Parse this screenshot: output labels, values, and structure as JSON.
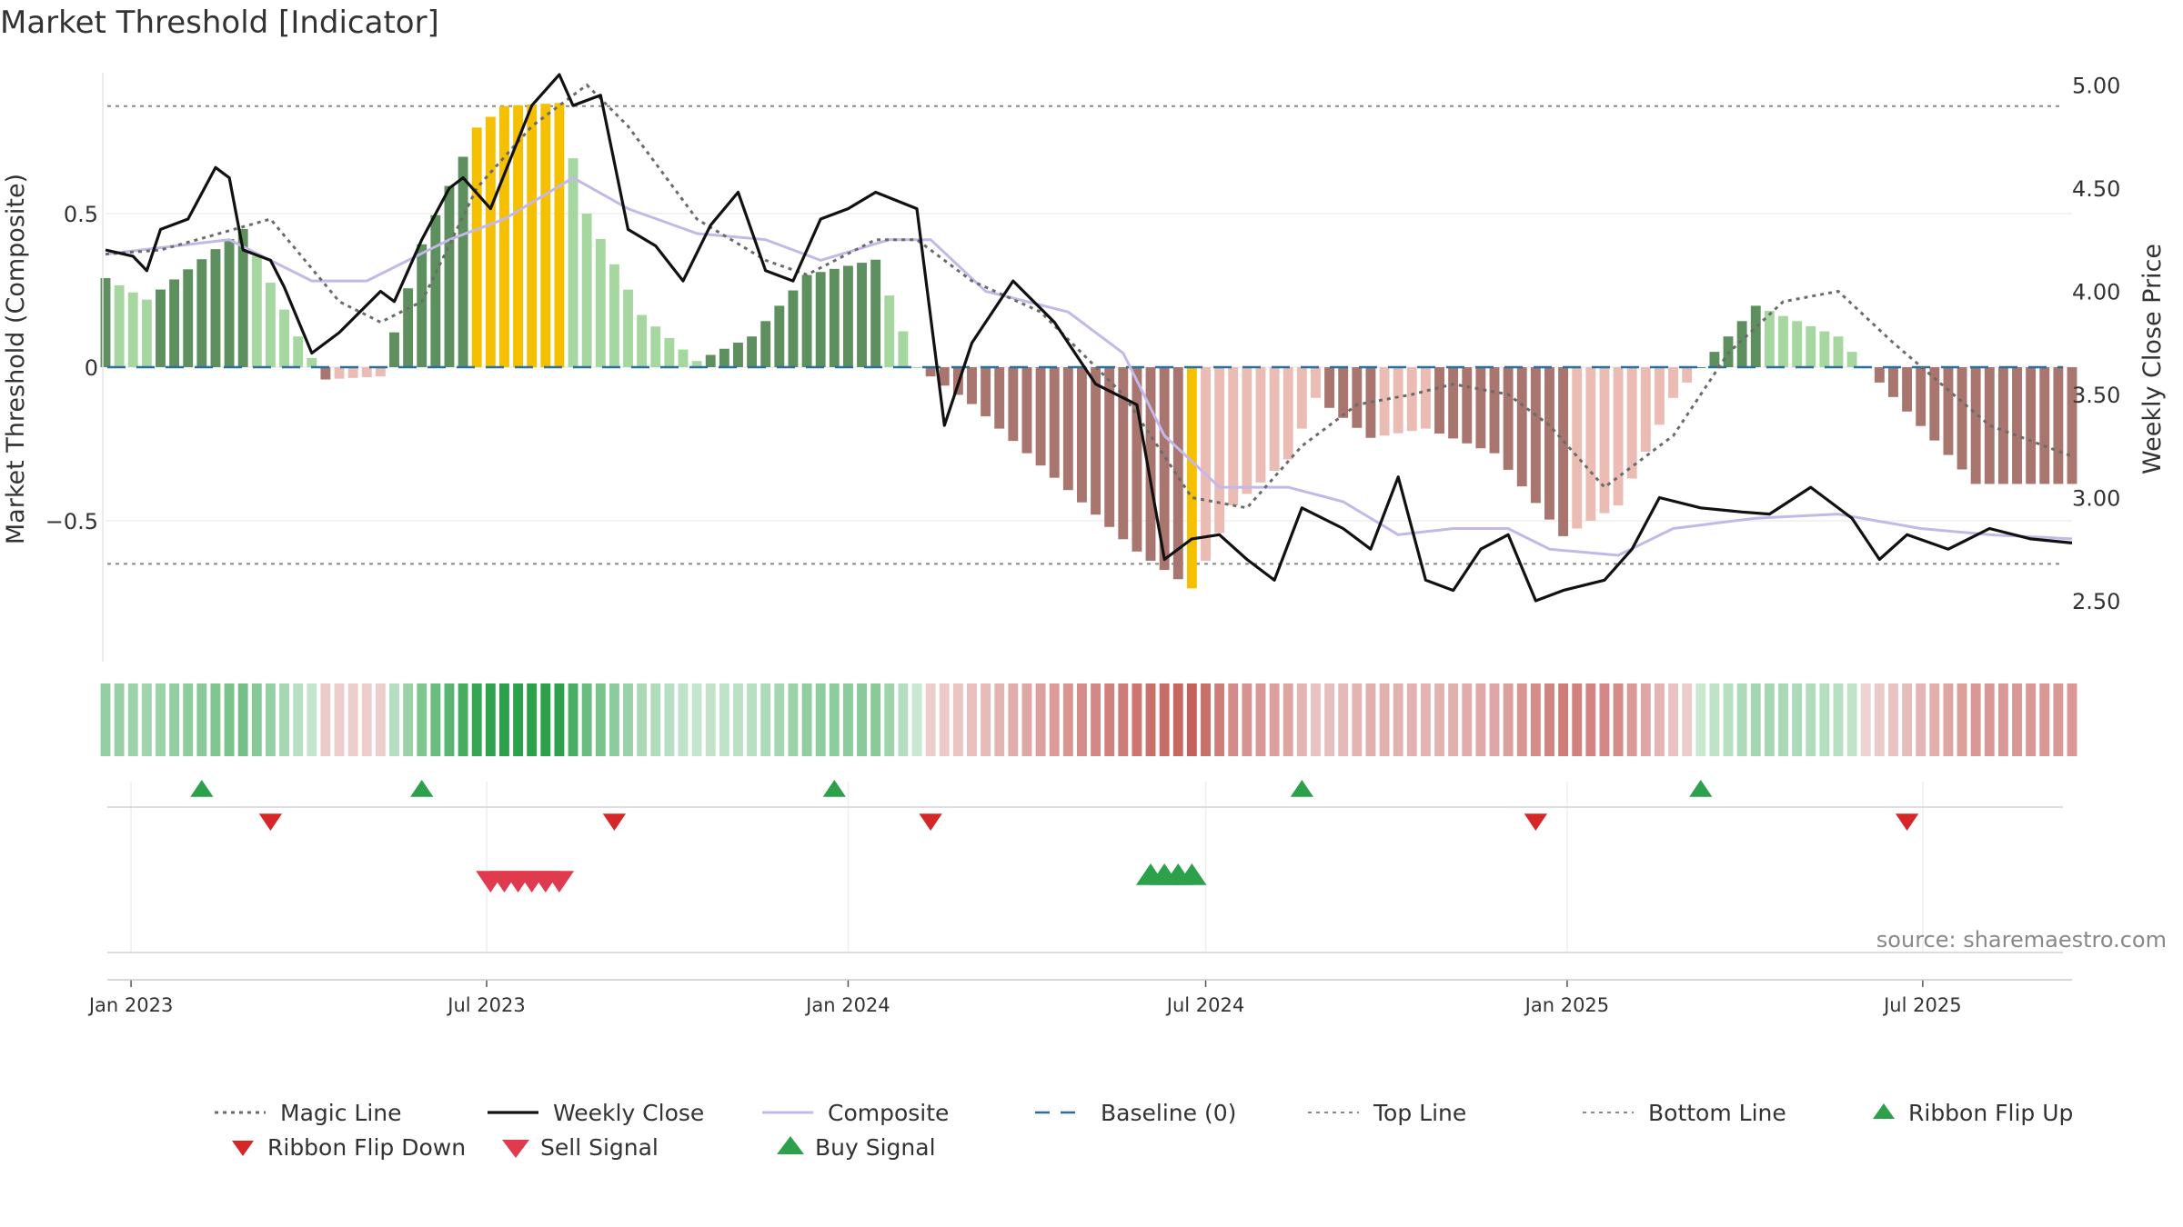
{
  "chart_data": {
    "type": "bar",
    "title": "Market Threshold [Indicator]",
    "ylabel": "Market Threshold (Composite)",
    "y2label": "Weekly Close Price",
    "source": "source: sharemaestro.com",
    "x_range": [
      "2022-12-19",
      "2025-09-15"
    ],
    "ylim": [
      -0.95,
      0.95
    ],
    "y2lim": [
      2.35,
      5.12
    ],
    "yticks": [
      {
        "v": 0.5,
        "label": "0.5"
      },
      {
        "v": 0,
        "label": "0"
      },
      {
        "v": -0.5,
        "label": "−0.5"
      }
    ],
    "y2ticks": [
      {
        "v": 5.0,
        "label": "5.00"
      },
      {
        "v": 4.5,
        "label": "4.50"
      },
      {
        "v": 4.0,
        "label": "4.00"
      },
      {
        "v": 3.5,
        "label": "3.50"
      },
      {
        "v": 3.0,
        "label": "3.00"
      },
      {
        "v": 2.5,
        "label": "2.50"
      }
    ],
    "xticks": [
      {
        "date": "2023-01-01",
        "label": "Jan 2023"
      },
      {
        "date": "2023-07-01",
        "label": "Jul 2023"
      },
      {
        "date": "2024-01-01",
        "label": "Jan 2024"
      },
      {
        "date": "2024-07-01",
        "label": "Jul 2024"
      },
      {
        "date": "2025-01-01",
        "label": "Jan 2025"
      },
      {
        "date": "2025-07-01",
        "label": "Jul 2025"
      }
    ],
    "top_line": 0.85,
    "bottom_line": -0.64,
    "composite_keyframes": [
      [
        "2022-12-19",
        0.29
      ],
      [
        "2023-01-09",
        0.22
      ],
      [
        "2023-02-27",
        0.45
      ],
      [
        "2023-03-27",
        0.1
      ],
      [
        "2023-04-10",
        -0.04
      ],
      [
        "2023-05-08",
        -0.03
      ],
      [
        "2023-05-29",
        0.4
      ],
      [
        "2023-06-26",
        0.78
      ],
      [
        "2023-07-10",
        0.85
      ],
      [
        "2023-08-07",
        0.86
      ],
      [
        "2023-08-21",
        0.5
      ],
      [
        "2023-09-18",
        0.17
      ],
      [
        "2023-10-16",
        0.02
      ],
      [
        "2023-11-13",
        0.1
      ],
      [
        "2023-12-11",
        0.3
      ],
      [
        "2024-01-15",
        0.35
      ],
      [
        "2024-02-05",
        0.0
      ],
      [
        "2024-03-04",
        -0.12
      ],
      [
        "2024-05-27",
        -0.6
      ],
      [
        "2024-06-24",
        -0.72
      ],
      [
        "2024-07-15",
        -0.45
      ],
      [
        "2024-08-12",
        -0.3
      ],
      [
        "2024-08-26",
        -0.1
      ],
      [
        "2024-09-23",
        -0.23
      ],
      [
        "2024-10-21",
        -0.2
      ],
      [
        "2024-11-25",
        -0.28
      ],
      [
        "2024-12-30",
        -0.55
      ],
      [
        "2025-01-27",
        -0.45
      ],
      [
        "2025-02-24",
        -0.1
      ],
      [
        "2025-03-17",
        0.05
      ],
      [
        "2025-04-07",
        0.2
      ],
      [
        "2025-05-19",
        0.1
      ],
      [
        "2025-06-09",
        -0.05
      ],
      [
        "2025-07-28",
        -0.38
      ],
      [
        "2025-09-08",
        -0.38
      ]
    ],
    "weekly_close_keyframes": [
      [
        "2022-12-19",
        4.2
      ],
      [
        "2023-01-02",
        4.17
      ],
      [
        "2023-01-09",
        4.1
      ],
      [
        "2023-01-16",
        4.3
      ],
      [
        "2023-01-30",
        4.35
      ],
      [
        "2023-02-13",
        4.6
      ],
      [
        "2023-02-20",
        4.55
      ],
      [
        "2023-02-27",
        4.2
      ],
      [
        "2023-03-13",
        4.15
      ],
      [
        "2023-03-20",
        4.02
      ],
      [
        "2023-04-03",
        3.7
      ],
      [
        "2023-04-17",
        3.8
      ],
      [
        "2023-05-08",
        4.0
      ],
      [
        "2023-05-15",
        3.95
      ],
      [
        "2023-05-29",
        4.25
      ],
      [
        "2023-06-12",
        4.5
      ],
      [
        "2023-06-19",
        4.55
      ],
      [
        "2023-07-03",
        4.4
      ],
      [
        "2023-07-24",
        4.9
      ],
      [
        "2023-08-07",
        5.05
      ],
      [
        "2023-08-14",
        4.9
      ],
      [
        "2023-08-28",
        4.95
      ],
      [
        "2023-09-11",
        4.3
      ],
      [
        "2023-09-25",
        4.22
      ],
      [
        "2023-10-09",
        4.05
      ],
      [
        "2023-10-23",
        4.32
      ],
      [
        "2023-11-06",
        4.48
      ],
      [
        "2023-11-20",
        4.1
      ],
      [
        "2023-12-04",
        4.05
      ],
      [
        "2023-12-18",
        4.35
      ],
      [
        "2024-01-01",
        4.4
      ],
      [
        "2024-01-15",
        4.48
      ],
      [
        "2024-02-05",
        4.4
      ],
      [
        "2024-02-19",
        3.35
      ],
      [
        "2024-03-04",
        3.75
      ],
      [
        "2024-03-25",
        4.05
      ],
      [
        "2024-04-15",
        3.85
      ],
      [
        "2024-05-06",
        3.55
      ],
      [
        "2024-05-27",
        3.45
      ],
      [
        "2024-06-10",
        2.7
      ],
      [
        "2024-06-24",
        2.8
      ],
      [
        "2024-07-08",
        2.82
      ],
      [
        "2024-07-22",
        2.7
      ],
      [
        "2024-08-05",
        2.6
      ],
      [
        "2024-08-19",
        2.95
      ],
      [
        "2024-09-09",
        2.85
      ],
      [
        "2024-09-23",
        2.75
      ],
      [
        "2024-10-07",
        3.1
      ],
      [
        "2024-10-21",
        2.6
      ],
      [
        "2024-11-04",
        2.55
      ],
      [
        "2024-11-18",
        2.75
      ],
      [
        "2024-12-02",
        2.82
      ],
      [
        "2024-12-16",
        2.5
      ],
      [
        "2024-12-30",
        2.55
      ],
      [
        "2025-01-20",
        2.6
      ],
      [
        "2025-02-03",
        2.75
      ],
      [
        "2025-02-17",
        3.0
      ],
      [
        "2025-03-10",
        2.95
      ],
      [
        "2025-03-31",
        2.93
      ],
      [
        "2025-04-14",
        2.92
      ],
      [
        "2025-05-05",
        3.05
      ],
      [
        "2025-05-26",
        2.9
      ],
      [
        "2025-06-09",
        2.7
      ],
      [
        "2025-06-23",
        2.82
      ],
      [
        "2025-07-14",
        2.75
      ],
      [
        "2025-08-04",
        2.85
      ],
      [
        "2025-08-25",
        2.8
      ],
      [
        "2025-09-15",
        2.78
      ]
    ],
    "weekly_composite_keyframes": [
      [
        "2022-12-19",
        4.18
      ],
      [
        "2023-02-20",
        4.25
      ],
      [
        "2023-04-03",
        4.05
      ],
      [
        "2023-05-01",
        4.05
      ],
      [
        "2023-06-12",
        4.25
      ],
      [
        "2023-07-10",
        4.35
      ],
      [
        "2023-08-14",
        4.55
      ],
      [
        "2023-09-11",
        4.4
      ],
      [
        "2023-10-16",
        4.28
      ],
      [
        "2023-11-20",
        4.25
      ],
      [
        "2023-12-18",
        4.15
      ],
      [
        "2024-01-22",
        4.25
      ],
      [
        "2024-02-12",
        4.25
      ],
      [
        "2024-03-11",
        4.0
      ],
      [
        "2024-04-22",
        3.9
      ],
      [
        "2024-05-20",
        3.7
      ],
      [
        "2024-06-10",
        3.3
      ],
      [
        "2024-07-08",
        3.05
      ],
      [
        "2024-08-12",
        3.05
      ],
      [
        "2024-09-09",
        2.98
      ],
      [
        "2024-10-07",
        2.82
      ],
      [
        "2024-11-04",
        2.85
      ],
      [
        "2024-12-02",
        2.85
      ],
      [
        "2024-12-23",
        2.75
      ],
      [
        "2025-01-27",
        2.72
      ],
      [
        "2025-02-24",
        2.85
      ],
      [
        "2025-04-07",
        2.9
      ],
      [
        "2025-05-19",
        2.92
      ],
      [
        "2025-06-30",
        2.85
      ],
      [
        "2025-08-04",
        2.82
      ],
      [
        "2025-09-15",
        2.8
      ]
    ],
    "magic_line_keyframes": [
      [
        "2022-12-19",
        4.18
      ],
      [
        "2023-01-16",
        4.2
      ],
      [
        "2023-03-13",
        4.35
      ],
      [
        "2023-04-17",
        3.95
      ],
      [
        "2023-05-08",
        3.85
      ],
      [
        "2023-05-29",
        3.95
      ],
      [
        "2023-06-26",
        4.5
      ],
      [
        "2023-07-24",
        4.8
      ],
      [
        "2023-08-21",
        5.0
      ],
      [
        "2023-09-11",
        4.8
      ],
      [
        "2023-10-16",
        4.35
      ],
      [
        "2023-11-20",
        4.15
      ],
      [
        "2023-12-11",
        4.08
      ],
      [
        "2024-01-15",
        4.25
      ],
      [
        "2024-02-05",
        4.25
      ],
      [
        "2024-03-04",
        4.05
      ],
      [
        "2024-04-08",
        3.9
      ],
      [
        "2024-05-20",
        3.5
      ],
      [
        "2024-06-24",
        3.0
      ],
      [
        "2024-07-22",
        2.95
      ],
      [
        "2024-08-19",
        3.25
      ],
      [
        "2024-09-16",
        3.45
      ],
      [
        "2024-10-14",
        3.5
      ],
      [
        "2024-11-04",
        3.55
      ],
      [
        "2024-12-02",
        3.5
      ],
      [
        "2024-12-23",
        3.35
      ],
      [
        "2025-01-20",
        3.05
      ],
      [
        "2025-02-24",
        3.3
      ],
      [
        "2025-03-24",
        3.7
      ],
      [
        "2025-04-21",
        3.95
      ],
      [
        "2025-05-19",
        4.0
      ],
      [
        "2025-06-16",
        3.75
      ],
      [
        "2025-08-04",
        3.35
      ],
      [
        "2025-09-15",
        3.2
      ]
    ],
    "ribbon_flip_up": [
      "2023-02-06",
      "2023-05-29",
      "2023-12-25",
      "2024-08-19",
      "2025-03-10"
    ],
    "ribbon_flip_down": [
      "2023-03-13",
      "2023-09-04",
      "2024-02-12",
      "2024-12-16",
      "2025-06-23"
    ],
    "sell_signals": [
      "2023-07-03",
      "2023-07-10",
      "2023-07-17",
      "2023-07-24",
      "2023-07-31",
      "2023-08-07"
    ],
    "buy_signals": [
      "2024-06-03",
      "2024-06-10",
      "2024-06-17",
      "2024-06-24"
    ],
    "legend": [
      {
        "key": "magic",
        "label": "Magic Line"
      },
      {
        "key": "close",
        "label": "Weekly Close"
      },
      {
        "key": "composite",
        "label": "Composite"
      },
      {
        "key": "baseline",
        "label": "Baseline (0)"
      },
      {
        "key": "top",
        "label": "Top Line"
      },
      {
        "key": "bottom",
        "label": "Bottom Line"
      },
      {
        "key": "flipup",
        "label": "Ribbon Flip Up"
      },
      {
        "key": "flipdown",
        "label": "Ribbon Flip Down"
      },
      {
        "key": "sell",
        "label": "Sell Signal"
      },
      {
        "key": "buy",
        "label": "Buy Signal"
      }
    ],
    "legend_placement": "bottom",
    "colors": {
      "bull_strong": "#5e8f5e",
      "bull_light": "#a7d7a0",
      "bear_strong": "#a8756f",
      "bear_light": "#ebbcb4",
      "extreme": "#f5c000",
      "close": "#111111",
      "composite": "#c4b8e8",
      "magic": "#6b6b6b",
      "baseline": "#2a6f9a",
      "threshold": "#888888",
      "flip_up": "#2ca04a",
      "flip_down": "#d62728",
      "buy": "#2ca04a",
      "sell": "#e03a4e"
    }
  }
}
